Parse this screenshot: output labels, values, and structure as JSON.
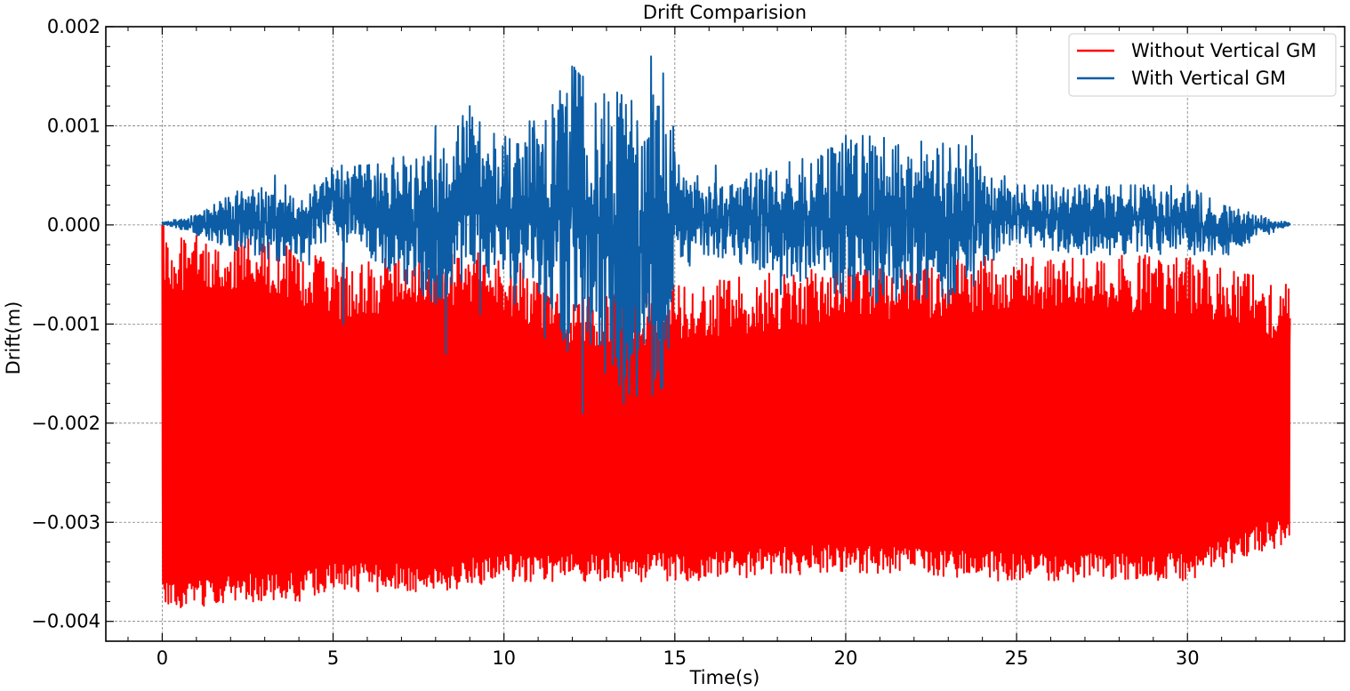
{
  "chart_data": {
    "type": "line",
    "title": "Drift Comparision",
    "xlabel": "Time(s)",
    "ylabel": "Drift(m)",
    "xlim": [
      -1.65,
      34.6
    ],
    "ylim": [
      -0.0042,
      0.002
    ],
    "xticks": [
      0,
      5,
      10,
      15,
      20,
      25,
      30
    ],
    "xtick_labels": [
      "0",
      "5",
      "10",
      "15",
      "20",
      "25",
      "30"
    ],
    "yticks": [
      0.002,
      0.001,
      0.0,
      -0.001,
      -0.002,
      -0.003,
      -0.004
    ],
    "ytick_labels": [
      "0.002",
      "0.001",
      "0.000",
      "−0.001",
      "−0.002",
      "−0.003",
      "−0.004"
    ],
    "grid": true,
    "legend_position": "top-right",
    "series": [
      {
        "name": "Without Vertical GM",
        "color": "#ff0000",
        "duration": 33.0,
        "mean_low": -0.0036,
        "mean_high": -0.0004,
        "envelope": [
          {
            "t": 0.0,
            "high": 0.0,
            "low": -0.0039
          },
          {
            "t": 0.5,
            "high": -0.0001,
            "low": -0.0039
          },
          {
            "t": 2.0,
            "high": -0.0001,
            "low": -0.0038
          },
          {
            "t": 4.0,
            "high": -0.0002,
            "low": -0.0038
          },
          {
            "t": 5.0,
            "high": -0.0004,
            "low": -0.0037
          },
          {
            "t": 8.0,
            "high": -0.0002,
            "low": -0.0037
          },
          {
            "t": 10.0,
            "high": -0.0003,
            "low": -0.0036
          },
          {
            "t": 12.5,
            "high": -0.0007,
            "low": -0.0036
          },
          {
            "t": 15.0,
            "high": -0.0006,
            "low": -0.0036
          },
          {
            "t": 20.0,
            "high": -0.0004,
            "low": -0.0035
          },
          {
            "t": 25.0,
            "high": -0.0003,
            "low": -0.0036
          },
          {
            "t": 30.0,
            "high": -0.0003,
            "low": -0.0036
          },
          {
            "t": 33.0,
            "high": -0.0006,
            "low": -0.0032
          }
        ]
      },
      {
        "name": "With Vertical GM",
        "color": "#0c5da5",
        "envelope": [
          {
            "t": 0.0,
            "high": 3e-05,
            "low": 0.0
          },
          {
            "t": 1.0,
            "high": 0.0001,
            "low": -0.0001
          },
          {
            "t": 2.5,
            "high": 0.0004,
            "low": -0.0003
          },
          {
            "t": 4.0,
            "high": 0.0003,
            "low": -0.0004
          },
          {
            "t": 5.0,
            "high": 0.0006,
            "low": -0.0001
          },
          {
            "t": 6.0,
            "high": 0.0006,
            "low": -0.0003
          },
          {
            "t": 8.0,
            "high": 0.0008,
            "low": -0.0008
          },
          {
            "t": 9.0,
            "high": 0.0011,
            "low": -0.0005
          },
          {
            "t": 10.5,
            "high": 0.0008,
            "low": -0.0006
          },
          {
            "t": 11.0,
            "high": 0.0014,
            "low": -0.0011
          },
          {
            "t": 12.0,
            "high": 0.0016,
            "low": -0.0013
          },
          {
            "t": 13.0,
            "high": 0.0014,
            "low": -0.0015
          },
          {
            "t": 14.0,
            "high": 0.0012,
            "low": -0.0018
          },
          {
            "t": 14.8,
            "high": 0.0016,
            "low": -0.0016
          },
          {
            "t": 15.0,
            "high": 0.0008,
            "low": -0.0005
          },
          {
            "t": 16.0,
            "high": 0.0004,
            "low": -0.0003
          },
          {
            "t": 19.0,
            "high": 0.0007,
            "low": -0.0006
          },
          {
            "t": 20.5,
            "high": 0.0009,
            "low": -0.0008
          },
          {
            "t": 23.5,
            "high": 0.0008,
            "low": -0.0007
          },
          {
            "t": 25.0,
            "high": 0.0004,
            "low": -0.0002
          },
          {
            "t": 27.0,
            "high": 0.0004,
            "low": -0.0003
          },
          {
            "t": 30.0,
            "high": 0.0004,
            "low": -0.0003
          },
          {
            "t": 31.0,
            "high": 0.0002,
            "low": -0.0003
          },
          {
            "t": 33.0,
            "high": 2e-05,
            "low": 0.0
          }
        ],
        "spikes": [
          {
            "t": 1.7,
            "v": 0.0001
          },
          {
            "t": 3.3,
            "v": 0.0005
          },
          {
            "t": 3.6,
            "v": 0.0004
          },
          {
            "t": 4.3,
            "v": -0.0004
          },
          {
            "t": 5.3,
            "v": 0.0005
          },
          {
            "t": 5.3,
            "v": -0.001
          },
          {
            "t": 6.0,
            "v": 0.0006
          },
          {
            "t": 7.1,
            "v": 0.0006
          },
          {
            "t": 8.3,
            "v": -0.0013
          },
          {
            "t": 8.0,
            "v": 0.001
          },
          {
            "t": 8.8,
            "v": 0.0011
          },
          {
            "t": 9.0,
            "v": 0.0012
          },
          {
            "t": 9.3,
            "v": -0.0009
          },
          {
            "t": 10.1,
            "v": 0.0007
          },
          {
            "t": 10.3,
            "v": -0.0008
          },
          {
            "t": 12.0,
            "v": 0.0016
          },
          {
            "t": 12.3,
            "v": -0.0019
          },
          {
            "t": 13.5,
            "v": -0.0018
          },
          {
            "t": 14.3,
            "v": 0.0017
          },
          {
            "t": 16.2,
            "v": 0.0006
          },
          {
            "t": 18.1,
            "v": -0.0007
          },
          {
            "t": 20.0,
            "v": 0.0009
          },
          {
            "t": 20.5,
            "v": 0.0009
          },
          {
            "t": 21.1,
            "v": -0.0007
          },
          {
            "t": 23.0,
            "v": -0.0008
          },
          {
            "t": 23.7,
            "v": 0.0009
          },
          {
            "t": 25.2,
            "v": 0.0002
          },
          {
            "t": 27.0,
            "v": 0.0004
          },
          {
            "t": 30.0,
            "v": 0.0004
          },
          {
            "t": 31.2,
            "v": -0.0003
          }
        ]
      }
    ]
  }
}
